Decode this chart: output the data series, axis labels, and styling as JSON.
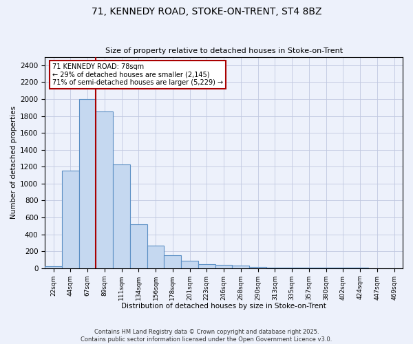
{
  "title1": "71, KENNEDY ROAD, STOKE-ON-TRENT, ST4 8BZ",
  "title2": "Size of property relative to detached houses in Stoke-on-Trent",
  "xlabel": "Distribution of detached houses by size in Stoke-on-Trent",
  "ylabel": "Number of detached properties",
  "bin_labels": [
    "22sqm",
    "44sqm",
    "67sqm",
    "89sqm",
    "111sqm",
    "134sqm",
    "156sqm",
    "178sqm",
    "201sqm",
    "223sqm",
    "246sqm",
    "268sqm",
    "290sqm",
    "313sqm",
    "335sqm",
    "357sqm",
    "380sqm",
    "402sqm",
    "424sqm",
    "447sqm",
    "469sqm"
  ],
  "bar_heights": [
    25,
    1150,
    2000,
    1850,
    1225,
    520,
    270,
    155,
    85,
    45,
    35,
    30,
    15,
    10,
    5,
    5,
    3,
    2,
    2,
    1,
    0
  ],
  "bar_color": "#c5d8f0",
  "bar_edge_color": "#5b8fc4",
  "ylim": [
    0,
    2500
  ],
  "yticks": [
    0,
    200,
    400,
    600,
    800,
    1000,
    1200,
    1400,
    1600,
    1800,
    2000,
    2200,
    2400
  ],
  "red_line_x": 2.5,
  "annotation_line1": "71 KENNEDY ROAD: 78sqm",
  "annotation_line2": "← 29% of detached houses are smaller (2,145)",
  "annotation_line3": "71% of semi-detached houses are larger (5,229) →",
  "annotation_box_color": "#ffffff",
  "annotation_border_color": "#aa0000",
  "footer1": "Contains HM Land Registry data © Crown copyright and database right 2025.",
  "footer2": "Contains public sector information licensed under the Open Government Licence v3.0.",
  "bg_color": "#edf1fb",
  "grid_color": "#c0c8e0"
}
